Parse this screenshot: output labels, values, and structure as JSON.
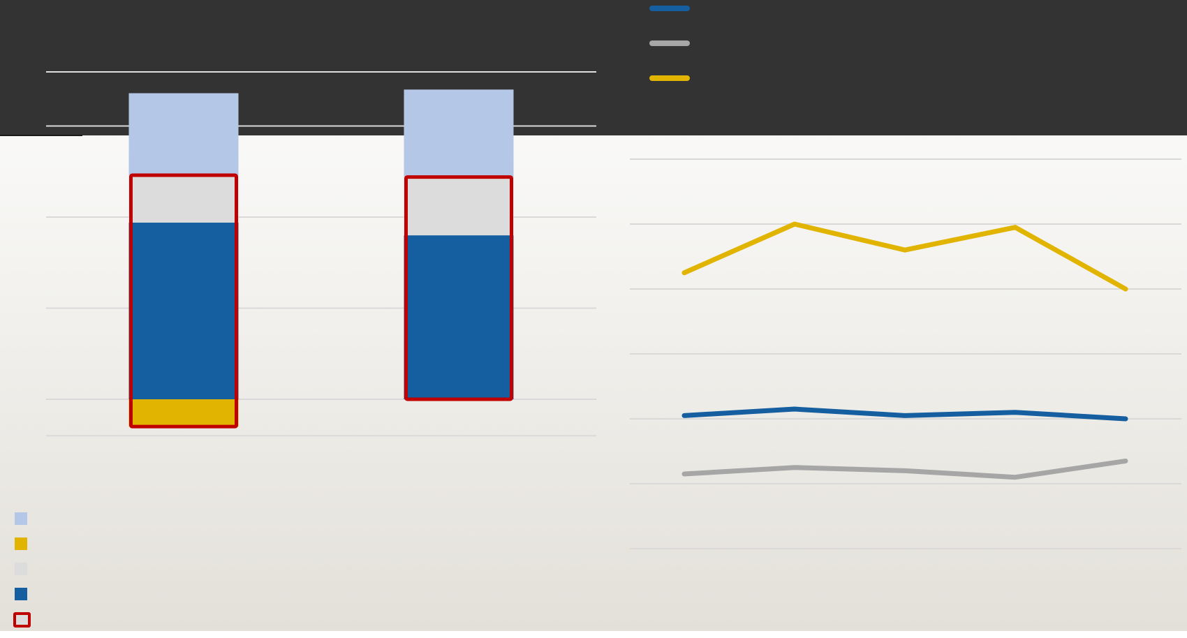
{
  "colors": {
    "header_band": "#333333",
    "light_blue": "#b4c7e7",
    "gold": "#e0b400",
    "light_gray": "#dcdcdc",
    "dark_blue": "#155ea0",
    "red_outline": "#c00000",
    "line_blue": "#155ea0",
    "line_gray": "#a6a6a6",
    "line_gold": "#e0b400",
    "grid": "#d9d9d9"
  },
  "legend_left": [
    {
      "label": "",
      "color": "#b4c7e7",
      "kind": "fill"
    },
    {
      "label": "",
      "color": "#e0b400",
      "kind": "fill"
    },
    {
      "label": "",
      "color": "#dcdcdc",
      "kind": "fill"
    },
    {
      "label": "",
      "color": "#155ea0",
      "kind": "fill"
    },
    {
      "label": "",
      "color": "#c00000",
      "kind": "outline"
    }
  ],
  "legend_right": [
    {
      "label": "",
      "color": "#155ea0"
    },
    {
      "label": "",
      "color": "#a6a6a6"
    },
    {
      "label": "",
      "color": "#e0b400"
    }
  ],
  "chart_data": [
    {
      "type": "bar",
      "stacked": true,
      "categories": [
        "",
        ""
      ],
      "ylim": [
        -2,
        17
      ],
      "gridlines": [
        -2,
        0,
        5,
        10,
        15
      ],
      "series": [
        {
          "color": "#e0b400",
          "values": [
            -1.5,
            0
          ]
        },
        {
          "color": "#155ea0",
          "values": [
            9.7,
            9.0
          ]
        },
        {
          "color": "#dcdcdc",
          "values": [
            2.6,
            3.2
          ]
        },
        {
          "color": "#b4c7e7",
          "values": [
            4.5,
            4.8
          ]
        }
      ],
      "outlined_ranges": [
        [
          -1.5,
          12.3
        ],
        [
          0,
          12.2
        ]
      ],
      "grid": true
    },
    {
      "type": "line",
      "categories": [
        "",
        "",
        "",
        "",
        ""
      ],
      "ylim": [
        0,
        7
      ],
      "gridlines": [
        0,
        1,
        2,
        3,
        4,
        5,
        6
      ],
      "series": [
        {
          "color": "#e0b400",
          "values": [
            4.25,
            5.0,
            4.6,
            4.95,
            4.0
          ]
        },
        {
          "color": "#155ea0",
          "values": [
            2.05,
            2.15,
            2.05,
            2.1,
            2.0
          ]
        },
        {
          "color": "#a6a6a6",
          "values": [
            1.15,
            1.25,
            1.2,
            1.1,
            1.35
          ]
        }
      ],
      "grid": true
    }
  ]
}
